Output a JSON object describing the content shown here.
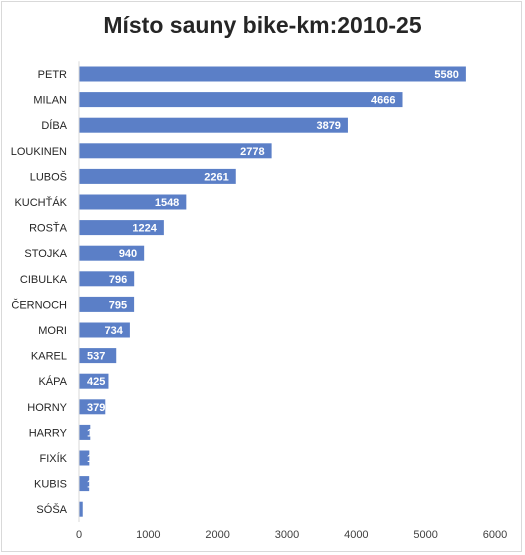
{
  "chart_data": {
    "type": "bar",
    "orientation": "horizontal",
    "title": "Místo sauny bike-km:2010-25",
    "xlabel": "",
    "ylabel": "",
    "categories": [
      "PETR",
      "MILAN",
      "DÍBA",
      "LOUKINEN",
      "LUBOŠ",
      "KUCHŤÁK",
      "ROSŤA",
      "STOJKA",
      "CIBULKA",
      "ČERNOCH",
      "MORI",
      "KAREL",
      "KÁPA",
      "HORNY",
      "HARRY",
      "FIXÍK",
      "KUBIS",
      "SÓŠA"
    ],
    "values": [
      5580,
      4666,
      3879,
      2778,
      2261,
      1548,
      1224,
      940,
      796,
      795,
      734,
      537,
      425,
      379,
      163,
      149,
      147,
      54
    ],
    "xlim": [
      0,
      6000
    ],
    "xticks": [
      0,
      1000,
      2000,
      3000,
      4000,
      5000,
      6000
    ],
    "grid": false,
    "legend": "none",
    "data_labels": "inside-end",
    "bar_color": "#5b7fc7",
    "label_color": "#ffffff"
  }
}
